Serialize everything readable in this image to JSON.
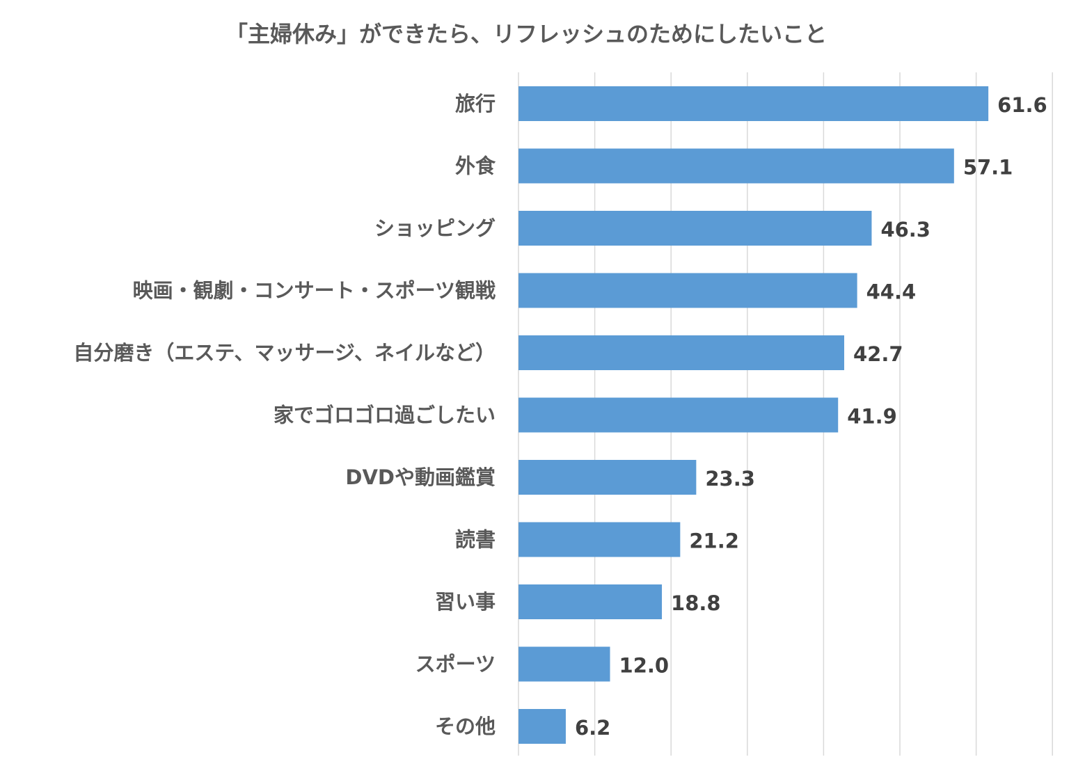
{
  "chart_data": {
    "type": "bar",
    "orientation": "horizontal",
    "title": "「主婦休み」ができたら、リフレッシュのためにしたいこと",
    "categories": [
      "旅行",
      "外食",
      "ショッピング",
      "映画・観劇・コンサート・スポーツ観戦",
      "自分磨き（エステ、マッサージ、ネイルなど）",
      "家でゴロゴロ過ごしたい",
      "DVDや動画鑑賞",
      "読書",
      "習い事",
      "スポーツ",
      "その他"
    ],
    "values": [
      61.6,
      57.1,
      46.3,
      44.4,
      42.7,
      41.9,
      23.3,
      21.2,
      18.8,
      12.0,
      6.2
    ],
    "value_labels": [
      "61.6",
      "57.1",
      "46.3",
      "44.4",
      "42.7",
      "41.9",
      "23.3",
      "21.2",
      "18.8",
      "12.0",
      "6.2"
    ],
    "xlim": [
      0,
      70
    ],
    "grid": true,
    "gridline_step": 10,
    "axis_tick_labels_shown": false,
    "legend": "none",
    "bar_color": "#5b9bd5"
  }
}
